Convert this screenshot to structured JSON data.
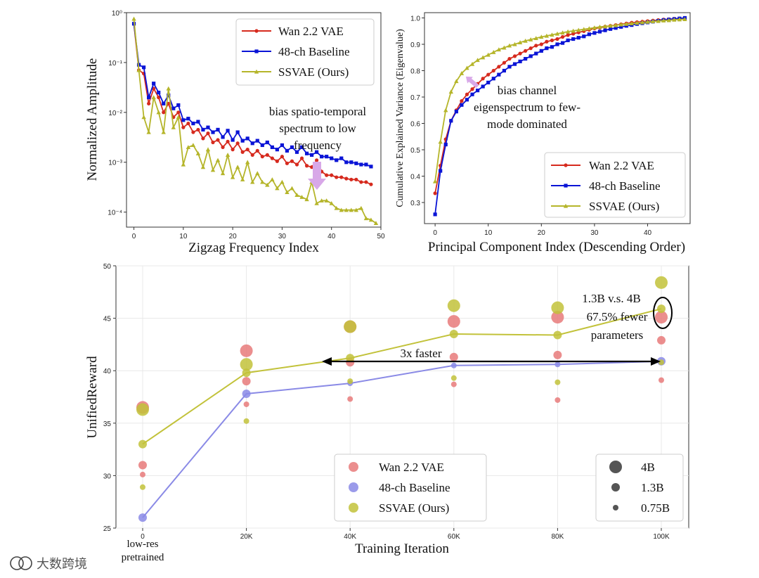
{
  "colors": {
    "wan": "#d62a1e",
    "baseline": "#0a14d6",
    "ssvae": "#b5b52a",
    "wan_bubble": "#e87a7a",
    "baseline_bubble": "#8a8ae6",
    "ssvae_bubble": "#c2c23a",
    "arrow": "#d8a8e8"
  },
  "chart_data": [
    {
      "id": "spectrum",
      "type": "line",
      "xlabel": "Zigzag Frequency Index",
      "ylabel": "Normalized Amplitude",
      "yscale": "log",
      "xlim": [
        -1.5,
        50
      ],
      "ylim": [
        5e-05,
        1.0
      ],
      "xticks": [
        "0",
        "10",
        "20",
        "30",
        "40",
        "50"
      ],
      "yticks": [
        "10⁻⁴",
        "10⁻³",
        "10⁻²",
        "10⁻¹",
        "10⁰"
      ],
      "annotation": [
        "bias spatio-temporal",
        "spectrum to low",
        "frequency"
      ],
      "legend": "top-right",
      "series": [
        {
          "name": "Wan 2.2 VAE",
          "x": [
            0,
            1,
            2,
            3,
            4,
            5,
            6,
            7,
            8,
            9,
            10,
            11,
            12,
            13,
            14,
            15,
            16,
            17,
            18,
            19,
            20,
            21,
            22,
            23,
            24,
            25,
            26,
            27,
            28,
            29,
            30,
            31,
            32,
            33,
            34,
            35,
            36,
            37,
            38,
            39,
            40,
            41,
            42,
            43,
            44,
            45,
            46,
            47,
            48
          ],
          "y": [
            0.6,
            0.07,
            0.06,
            0.015,
            0.03,
            0.02,
            0.01,
            0.015,
            0.008,
            0.01,
            0.005,
            0.006,
            0.004,
            0.0045,
            0.003,
            0.0038,
            0.0025,
            0.0028,
            0.002,
            0.0026,
            0.0018,
            0.0024,
            0.0016,
            0.0018,
            0.0014,
            0.0017,
            0.0013,
            0.0014,
            0.0012,
            0.00105,
            0.0013,
            0.00095,
            0.00105,
            0.0009,
            0.0012,
            0.00085,
            0.0008,
            0.0011,
            0.00065,
            0.00055,
            0.00055,
            0.0005,
            0.0005,
            0.00047,
            0.00045,
            0.00045,
            0.0004,
            0.0004,
            0.00036
          ]
        },
        {
          "name": "48-ch Baseline",
          "x": [
            0,
            1,
            2,
            3,
            4,
            5,
            6,
            7,
            8,
            9,
            10,
            11,
            12,
            13,
            14,
            15,
            16,
            17,
            18,
            19,
            20,
            21,
            22,
            23,
            24,
            25,
            26,
            27,
            28,
            29,
            30,
            31,
            32,
            33,
            34,
            35,
            36,
            37,
            38,
            39,
            40,
            41,
            42,
            43,
            44,
            45,
            46,
            47,
            48
          ],
          "y": [
            0.6,
            0.09,
            0.08,
            0.02,
            0.038,
            0.025,
            0.015,
            0.022,
            0.012,
            0.014,
            0.007,
            0.0075,
            0.006,
            0.0065,
            0.0045,
            0.005,
            0.004,
            0.0045,
            0.0032,
            0.0043,
            0.0028,
            0.004,
            0.0027,
            0.003,
            0.0024,
            0.0027,
            0.0022,
            0.0025,
            0.002,
            0.0018,
            0.0022,
            0.0017,
            0.002,
            0.0016,
            0.002,
            0.0015,
            0.0014,
            0.0016,
            0.0013,
            0.0013,
            0.0012,
            0.0011,
            0.0012,
            0.001,
            0.001,
            0.00095,
            0.0009,
            0.0009,
            0.00082
          ]
        },
        {
          "name": "SSVAE (Ours)",
          "x": [
            0,
            1,
            2,
            3,
            4,
            5,
            6,
            7,
            8,
            9,
            10,
            11,
            12,
            13,
            14,
            15,
            16,
            17,
            18,
            19,
            20,
            21,
            22,
            23,
            24,
            25,
            26,
            27,
            28,
            29,
            30,
            31,
            32,
            33,
            34,
            35,
            36,
            37,
            38,
            39,
            40,
            41,
            42,
            43,
            44,
            45,
            46,
            47,
            48,
            49
          ],
          "y": [
            0.75,
            0.07,
            0.008,
            0.004,
            0.02,
            0.01,
            0.004,
            0.03,
            0.005,
            0.008,
            0.0009,
            0.002,
            0.0022,
            0.0015,
            0.0008,
            0.0018,
            0.0007,
            0.0011,
            0.0006,
            0.0014,
            0.0005,
            0.0008,
            0.00045,
            0.001,
            0.0004,
            0.0006,
            0.0004,
            0.00035,
            0.00045,
            0.0003,
            0.0004,
            0.00025,
            0.0003,
            0.00022,
            0.0002,
            0.00018,
            0.0004,
            0.00015,
            0.00017,
            0.00017,
            0.00015,
            0.00012,
            0.00011,
            0.00011,
            0.00011,
            0.00011,
            0.00012,
            7.5e-05,
            7e-05,
            6e-05
          ]
        }
      ]
    },
    {
      "id": "pca",
      "type": "line",
      "xlabel": "Principal Component Index (Descending Order)",
      "ylabel": "Cumulative Explained Variance (Eigenvalue)",
      "xlim": [
        -2,
        48
      ],
      "ylim": [
        0.22,
        1.02
      ],
      "xticks": [
        "0",
        "10",
        "20",
        "30",
        "40"
      ],
      "yticks": [
        "0.3",
        "0.4",
        "0.5",
        "0.6",
        "0.7",
        "0.8",
        "0.9",
        "1.0"
      ],
      "annotation": [
        "bias channel",
        "eigenspectrum to few-",
        "mode dominated"
      ],
      "legend": "bottom-right",
      "series": [
        {
          "name": "Wan 2.2 VAE",
          "x": [
            0,
            1,
            2,
            3,
            4,
            5,
            6,
            7,
            8,
            9,
            10,
            11,
            12,
            13,
            14,
            15,
            16,
            17,
            18,
            19,
            20,
            21,
            22,
            23,
            24,
            25,
            26,
            27,
            28,
            29,
            30,
            31,
            32,
            33,
            34,
            35,
            36,
            37,
            38,
            39,
            40,
            41,
            42,
            43,
            44,
            45,
            46,
            47
          ],
          "y": [
            0.335,
            0.44,
            0.54,
            0.61,
            0.65,
            0.685,
            0.71,
            0.73,
            0.75,
            0.77,
            0.785,
            0.8,
            0.815,
            0.83,
            0.845,
            0.855,
            0.865,
            0.875,
            0.885,
            0.895,
            0.9,
            0.91,
            0.915,
            0.92,
            0.928,
            0.935,
            0.94,
            0.945,
            0.95,
            0.955,
            0.96,
            0.963,
            0.967,
            0.97,
            0.973,
            0.976,
            0.979,
            0.982,
            0.984,
            0.986,
            0.988,
            0.99,
            0.992,
            0.994,
            0.995,
            0.997,
            0.998,
            1.0
          ]
        },
        {
          "name": "48-ch Baseline",
          "x": [
            0,
            1,
            2,
            3,
            4,
            5,
            6,
            7,
            8,
            9,
            10,
            11,
            12,
            13,
            14,
            15,
            16,
            17,
            18,
            19,
            20,
            21,
            22,
            23,
            24,
            25,
            26,
            27,
            28,
            29,
            30,
            31,
            32,
            33,
            34,
            35,
            36,
            37,
            38,
            39,
            40,
            41,
            42,
            43,
            44,
            45,
            46,
            47
          ],
          "y": [
            0.255,
            0.42,
            0.52,
            0.61,
            0.645,
            0.67,
            0.69,
            0.71,
            0.725,
            0.74,
            0.755,
            0.77,
            0.785,
            0.8,
            0.815,
            0.825,
            0.835,
            0.845,
            0.855,
            0.865,
            0.875,
            0.885,
            0.89,
            0.9,
            0.905,
            0.915,
            0.92,
            0.925,
            0.93,
            0.938,
            0.943,
            0.948,
            0.953,
            0.958,
            0.962,
            0.966,
            0.97,
            0.973,
            0.977,
            0.98,
            0.983,
            0.986,
            0.989,
            0.992,
            0.994,
            0.996,
            0.998,
            1.0
          ]
        },
        {
          "name": "SSVAE (Ours)",
          "x": [
            0,
            1,
            2,
            3,
            4,
            5,
            6,
            7,
            8,
            9,
            10,
            11,
            12,
            13,
            14,
            15,
            16,
            17,
            18,
            19,
            20,
            21,
            22,
            23,
            24,
            25,
            26,
            27,
            28,
            29,
            30,
            31,
            32,
            33,
            34,
            35,
            36,
            37,
            38,
            39,
            40,
            41,
            42,
            43,
            44,
            45,
            46,
            47
          ],
          "y": [
            0.38,
            0.53,
            0.65,
            0.72,
            0.76,
            0.79,
            0.81,
            0.825,
            0.84,
            0.85,
            0.86,
            0.87,
            0.88,
            0.887,
            0.895,
            0.9,
            0.907,
            0.913,
            0.918,
            0.923,
            0.928,
            0.932,
            0.936,
            0.94,
            0.944,
            0.948,
            0.951,
            0.954,
            0.957,
            0.96,
            0.963,
            0.966,
            0.968,
            0.97,
            0.972,
            0.975,
            0.977,
            0.979,
            0.981,
            0.983,
            0.985,
            0.987,
            0.988,
            0.99,
            0.991,
            0.993,
            0.994,
            0.995
          ]
        }
      ]
    },
    {
      "id": "reward",
      "type": "scatter",
      "xlabel": "Training Iteration",
      "ylabel": "UnifiedReward",
      "categories": [
        "0",
        "20K",
        "40K",
        "60K",
        "80K",
        "100K"
      ],
      "first_category_note": [
        "low-res",
        "pretrained"
      ],
      "ylim": [
        25,
        50
      ],
      "yticks": [
        "25",
        "30",
        "35",
        "40",
        "45",
        "50"
      ],
      "grid": true,
      "legend": "bottom-center",
      "size_legend": {
        "labels": [
          "4B",
          "1.3B",
          "0.75B"
        ]
      },
      "arrow_label": "3x faster",
      "annotation": [
        "1.3B v.s. 4B",
        "67.5% fewer",
        "parameters"
      ],
      "lines": [
        {
          "name": "48-ch Baseline",
          "y": [
            26.0,
            37.8,
            38.8,
            40.5,
            40.6,
            40.9
          ]
        },
        {
          "name": "SSVAE (Ours)",
          "y": [
            33.0,
            39.8,
            41.2,
            43.5,
            43.4,
            45.9
          ]
        }
      ],
      "series": [
        {
          "name": "Wan 2.2 VAE",
          "points": [
            {
              "x": 0,
              "y": 36.5,
              "size": "4B"
            },
            {
              "x": 0,
              "y": 31.0,
              "size": "1.3B"
            },
            {
              "x": 0,
              "y": 30.1,
              "size": "0.75B"
            },
            {
              "x": 1,
              "y": 41.9,
              "size": "4B"
            },
            {
              "x": 1,
              "y": 39.0,
              "size": "1.3B"
            },
            {
              "x": 1,
              "y": 36.8,
              "size": "0.75B"
            },
            {
              "x": 2,
              "y": 44.2,
              "size": "4B"
            },
            {
              "x": 2,
              "y": 40.8,
              "size": "1.3B"
            },
            {
              "x": 2,
              "y": 37.3,
              "size": "0.75B"
            },
            {
              "x": 3,
              "y": 44.7,
              "size": "4B"
            },
            {
              "x": 3,
              "y": 41.3,
              "size": "1.3B"
            },
            {
              "x": 3,
              "y": 38.7,
              "size": "0.75B"
            },
            {
              "x": 4,
              "y": 45.1,
              "size": "4B"
            },
            {
              "x": 4,
              "y": 41.5,
              "size": "1.3B"
            },
            {
              "x": 4,
              "y": 37.2,
              "size": "0.75B"
            },
            {
              "x": 5,
              "y": 45.1,
              "size": "4B"
            },
            {
              "x": 5,
              "y": 42.9,
              "size": "1.3B"
            },
            {
              "x": 5,
              "y": 39.1,
              "size": "0.75B"
            }
          ]
        },
        {
          "name": "48-ch Baseline",
          "points": [
            {
              "x": 0,
              "y": 26.0,
              "size": "1.3B"
            },
            {
              "x": 1,
              "y": 37.8,
              "size": "1.3B"
            },
            {
              "x": 2,
              "y": 38.8,
              "size": "0.75B"
            },
            {
              "x": 3,
              "y": 40.5,
              "size": "0.75B"
            },
            {
              "x": 4,
              "y": 40.6,
              "size": "0.75B"
            },
            {
              "x": 5,
              "y": 40.9,
              "size": "1.3B"
            }
          ]
        },
        {
          "name": "SSVAE (Ours)",
          "points": [
            {
              "x": 0,
              "y": 36.3,
              "size": "4B"
            },
            {
              "x": 0,
              "y": 33.0,
              "size": "1.3B"
            },
            {
              "x": 0,
              "y": 28.9,
              "size": "0.75B"
            },
            {
              "x": 1,
              "y": 40.6,
              "size": "4B"
            },
            {
              "x": 1,
              "y": 39.8,
              "size": "1.3B"
            },
            {
              "x": 1,
              "y": 35.2,
              "size": "0.75B"
            },
            {
              "x": 2,
              "y": 44.2,
              "size": "4B"
            },
            {
              "x": 2,
              "y": 41.2,
              "size": "1.3B"
            },
            {
              "x": 2,
              "y": 39.0,
              "size": "0.75B"
            },
            {
              "x": 3,
              "y": 46.2,
              "size": "4B"
            },
            {
              "x": 3,
              "y": 43.5,
              "size": "1.3B"
            },
            {
              "x": 3,
              "y": 39.3,
              "size": "0.75B"
            },
            {
              "x": 4,
              "y": 46.0,
              "size": "4B"
            },
            {
              "x": 4,
              "y": 43.4,
              "size": "1.3B"
            },
            {
              "x": 4,
              "y": 38.9,
              "size": "0.75B"
            },
            {
              "x": 5,
              "y": 48.4,
              "size": "4B"
            },
            {
              "x": 5,
              "y": 45.9,
              "size": "1.3B"
            },
            {
              "x": 5,
              "y": 40.8,
              "size": "0.75B"
            }
          ]
        }
      ]
    }
  ],
  "watermark": {
    "brand": "大数跨境"
  }
}
